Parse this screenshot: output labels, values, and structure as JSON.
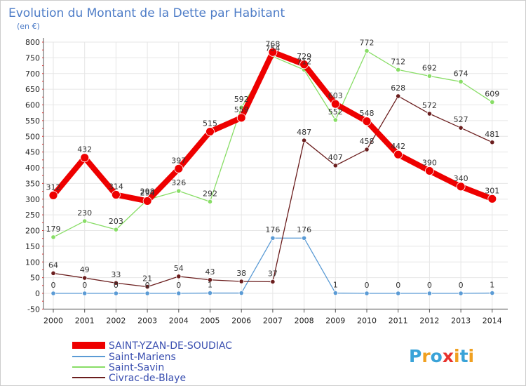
{
  "chart_data": {
    "type": "line",
    "title": "Evolution du Montant de la Dette par Habitant",
    "subtitle": "(en €)",
    "xlabel": "",
    "ylabel": "",
    "ylim": [
      -50,
      800
    ],
    "yticks": [
      -50,
      0,
      50,
      100,
      150,
      200,
      250,
      300,
      350,
      400,
      450,
      500,
      550,
      600,
      650,
      700,
      750,
      800
    ],
    "categories": [
      "2000",
      "2001",
      "2002",
      "2003",
      "2004",
      "2005",
      "2006",
      "2007",
      "2008",
      "2009",
      "2010",
      "2011",
      "2012",
      "2013",
      "2014"
    ],
    "series": [
      {
        "name": "Saint-Mariens",
        "color": "#5b9bd5",
        "values": [
          0,
          0,
          0,
          0,
          0,
          1,
          1,
          176,
          176,
          1,
          0,
          0,
          0,
          0,
          1
        ],
        "labels": [
          "0",
          "0",
          "0",
          "0",
          "0",
          "1",
          "",
          "176",
          "176",
          "1",
          "0",
          "0",
          "0",
          "0",
          "1"
        ]
      },
      {
        "name": "Saint-Savin",
        "color": "#88dd66",
        "values": [
          179,
          230,
          203,
          298,
          326,
          292,
          592,
          754,
          712,
          552,
          772,
          712,
          692,
          674,
          609
        ],
        "labels": [
          "179",
          "230",
          "203",
          "298",
          "326",
          "292",
          "592",
          "754",
          "712",
          "552",
          "772",
          "712",
          "692",
          "674",
          "609"
        ]
      },
      {
        "name": "Civrac-de-Blaye",
        "color": "#6b1e1e",
        "values": [
          64,
          49,
          33,
          21,
          54,
          43,
          38,
          37,
          487,
          407,
          458,
          628,
          572,
          527,
          481
        ],
        "labels": [
          "64",
          "49",
          "33",
          "21",
          "54",
          "43",
          "38",
          "37",
          "487",
          "407",
          "458",
          "628",
          "572",
          "527",
          "481"
        ]
      },
      {
        "name": "SAINT-YZAN-DE-SOUDIAC",
        "color": "#ee0000",
        "values": [
          312,
          432,
          314,
          294,
          397,
          515,
          559,
          768,
          729,
          603,
          548,
          442,
          390,
          340,
          301
        ],
        "labels": [
          "312",
          "432",
          "314",
          "294",
          "397",
          "515",
          "559",
          "768",
          "729",
          "603",
          "548",
          "442",
          "390",
          "340",
          "301"
        ]
      }
    ],
    "legend": [
      "SAINT-YZAN-DE-SOUDIAC",
      "Saint-Mariens",
      "Saint-Savin",
      "Civrac-de-Blaye"
    ],
    "legend_position": "bottom-left",
    "grid": true
  },
  "logo": {
    "text": "Proxiti",
    "letters": [
      "P",
      "r",
      "o",
      "x",
      "i",
      "t",
      "i"
    ],
    "colors": [
      "#3aa3d8",
      "#f0a020",
      "#3aa3d8",
      "#e8322c",
      "#f0a020",
      "#3aa3d8",
      "#f0a020"
    ]
  }
}
